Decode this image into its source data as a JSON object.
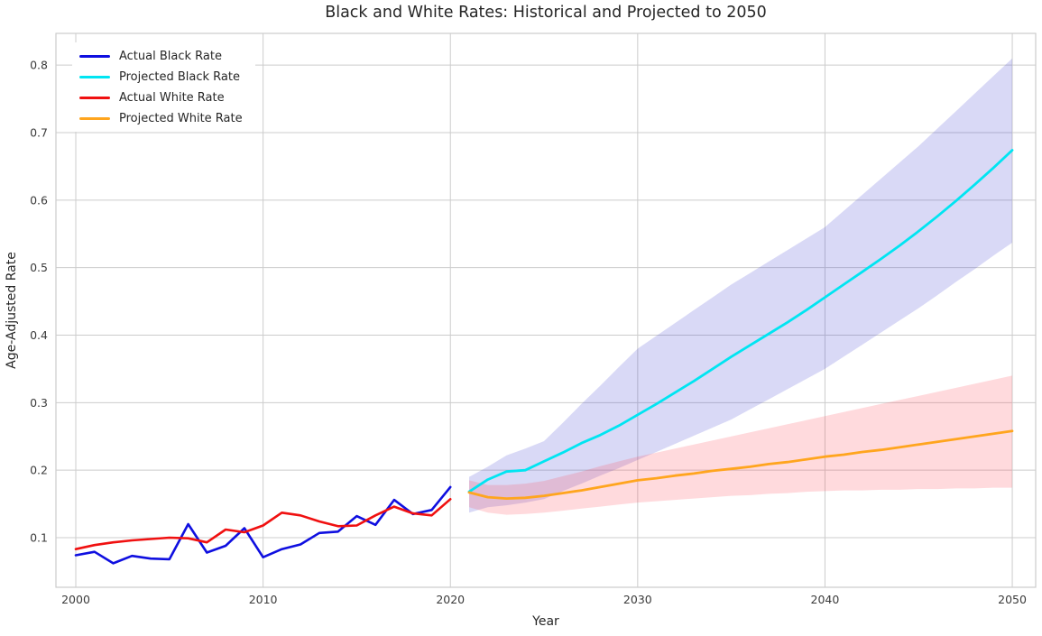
{
  "title": "Black and White Rates: Historical and Projected to 2050",
  "chart_data": {
    "type": "line",
    "title": "Black and White Rates: Historical and Projected to 2050",
    "xlabel": "Year",
    "ylabel": "Age-Adjusted Rate",
    "xlim": [
      1998.94,
      2051.25
    ],
    "ylim": [
      0.0265,
      0.847
    ],
    "xticks": [
      2000,
      2010,
      2020,
      2030,
      2040,
      2050
    ],
    "yticks": [
      0.1,
      0.2,
      0.3,
      0.4,
      0.5,
      0.6,
      0.7,
      0.8
    ],
    "grid": true,
    "grid_color": "#cccccc",
    "background": "#ffffff",
    "legend_position": "upper left",
    "series": [
      {
        "name": "Actual Black Rate",
        "color": "#0f0fe0",
        "width": 2.6,
        "x": [
          2000,
          2001,
          2002,
          2003,
          2004,
          2005,
          2006,
          2007,
          2008,
          2009,
          2010,
          2011,
          2012,
          2013,
          2014,
          2015,
          2016,
          2017,
          2018,
          2019,
          2020
        ],
        "values": [
          0.074,
          0.079,
          0.062,
          0.073,
          0.069,
          0.068,
          0.12,
          0.078,
          0.088,
          0.114,
          0.071,
          0.083,
          0.09,
          0.107,
          0.109,
          0.132,
          0.119,
          0.156,
          0.135,
          0.141,
          0.175
        ]
      },
      {
        "name": "Projected Black Rate",
        "color": "#00e5f2",
        "width": 2.8,
        "x": [
          2021,
          2022,
          2023,
          2024,
          2025,
          2026,
          2027,
          2028,
          2029,
          2030,
          2031,
          2032,
          2033,
          2034,
          2035,
          2036,
          2037,
          2038,
          2039,
          2040,
          2041,
          2042,
          2043,
          2044,
          2045,
          2046,
          2047,
          2048,
          2049,
          2050
        ],
        "values": [
          0.168,
          0.186,
          0.198,
          0.2,
          0.213,
          0.226,
          0.24,
          0.252,
          0.266,
          0.282,
          0.298,
          0.315,
          0.332,
          0.35,
          0.368,
          0.385,
          0.402,
          0.419,
          0.437,
          0.456,
          0.475,
          0.494,
          0.513,
          0.533,
          0.554,
          0.576,
          0.599,
          0.623,
          0.648,
          0.674
        ]
      },
      {
        "name": "Actual White Rate",
        "color": "#f01010",
        "width": 2.6,
        "x": [
          2000,
          2001,
          2002,
          2003,
          2004,
          2005,
          2006,
          2007,
          2008,
          2009,
          2010,
          2011,
          2012,
          2013,
          2014,
          2015,
          2016,
          2017,
          2018,
          2019,
          2020
        ],
        "values": [
          0.083,
          0.089,
          0.093,
          0.096,
          0.098,
          0.1,
          0.099,
          0.093,
          0.112,
          0.108,
          0.118,
          0.137,
          0.133,
          0.124,
          0.117,
          0.118,
          0.133,
          0.146,
          0.136,
          0.133,
          0.157
        ]
      },
      {
        "name": "Projected White Rate",
        "color": "#ffa51e",
        "width": 2.8,
        "x": [
          2021,
          2022,
          2023,
          2024,
          2025,
          2026,
          2027,
          2028,
          2029,
          2030,
          2031,
          2032,
          2033,
          2034,
          2035,
          2036,
          2037,
          2038,
          2039,
          2040,
          2041,
          2042,
          2043,
          2044,
          2045,
          2046,
          2047,
          2048,
          2049,
          2050
        ],
        "values": [
          0.167,
          0.16,
          0.158,
          0.159,
          0.162,
          0.166,
          0.17,
          0.175,
          0.18,
          0.185,
          0.188,
          0.192,
          0.195,
          0.199,
          0.202,
          0.205,
          0.209,
          0.212,
          0.216,
          0.22,
          0.223,
          0.227,
          0.23,
          0.234,
          0.238,
          0.242,
          0.246,
          0.25,
          0.254,
          0.258
        ]
      }
    ],
    "bands": [
      {
        "name": "projected-black-confidence-interval",
        "color": "#4040d0",
        "opacity": 0.2,
        "x": [
          2021,
          2022,
          2023,
          2024,
          2025,
          2026,
          2027,
          2028,
          2029,
          2030,
          2031,
          2032,
          2033,
          2034,
          2035,
          2036,
          2037,
          2038,
          2039,
          2040,
          2041,
          2042,
          2043,
          2044,
          2045,
          2046,
          2047,
          2048,
          2049,
          2050
        ],
        "lo": [
          0.137,
          0.145,
          0.148,
          0.152,
          0.157,
          0.169,
          0.18,
          0.192,
          0.203,
          0.215,
          0.227,
          0.239,
          0.251,
          0.263,
          0.275,
          0.29,
          0.305,
          0.32,
          0.335,
          0.35,
          0.368,
          0.386,
          0.404,
          0.422,
          0.44,
          0.459,
          0.479,
          0.498,
          0.518,
          0.537
        ],
        "hi": [
          0.19,
          0.205,
          0.222,
          0.232,
          0.243,
          0.27,
          0.298,
          0.325,
          0.353,
          0.38,
          0.399,
          0.418,
          0.437,
          0.456,
          0.475,
          0.492,
          0.509,
          0.526,
          0.543,
          0.56,
          0.584,
          0.608,
          0.632,
          0.656,
          0.68,
          0.706,
          0.732,
          0.758,
          0.784,
          0.81
        ]
      },
      {
        "name": "projected-white-confidence-interval",
        "color": "#ff4455",
        "opacity": 0.2,
        "x": [
          2021,
          2022,
          2023,
          2024,
          2025,
          2026,
          2027,
          2028,
          2029,
          2030,
          2031,
          2032,
          2033,
          2034,
          2035,
          2036,
          2037,
          2038,
          2039,
          2040,
          2041,
          2042,
          2043,
          2044,
          2045,
          2046,
          2047,
          2048,
          2049,
          2050
        ],
        "lo": [
          0.145,
          0.137,
          0.134,
          0.135,
          0.137,
          0.14,
          0.143,
          0.146,
          0.149,
          0.152,
          0.154,
          0.156,
          0.158,
          0.16,
          0.162,
          0.163,
          0.165,
          0.166,
          0.168,
          0.169,
          0.17,
          0.17,
          0.171,
          0.171,
          0.172,
          0.172,
          0.173,
          0.173,
          0.174,
          0.174
        ],
        "hi": [
          0.185,
          0.178,
          0.178,
          0.18,
          0.184,
          0.191,
          0.198,
          0.206,
          0.213,
          0.22,
          0.226,
          0.232,
          0.238,
          0.244,
          0.25,
          0.256,
          0.262,
          0.268,
          0.274,
          0.28,
          0.286,
          0.292,
          0.298,
          0.304,
          0.31,
          0.316,
          0.322,
          0.328,
          0.334,
          0.34
        ]
      }
    ],
    "tick_color": "#3b3b3b",
    "label_color": "#262626",
    "spine_color": "#cccccc"
  }
}
